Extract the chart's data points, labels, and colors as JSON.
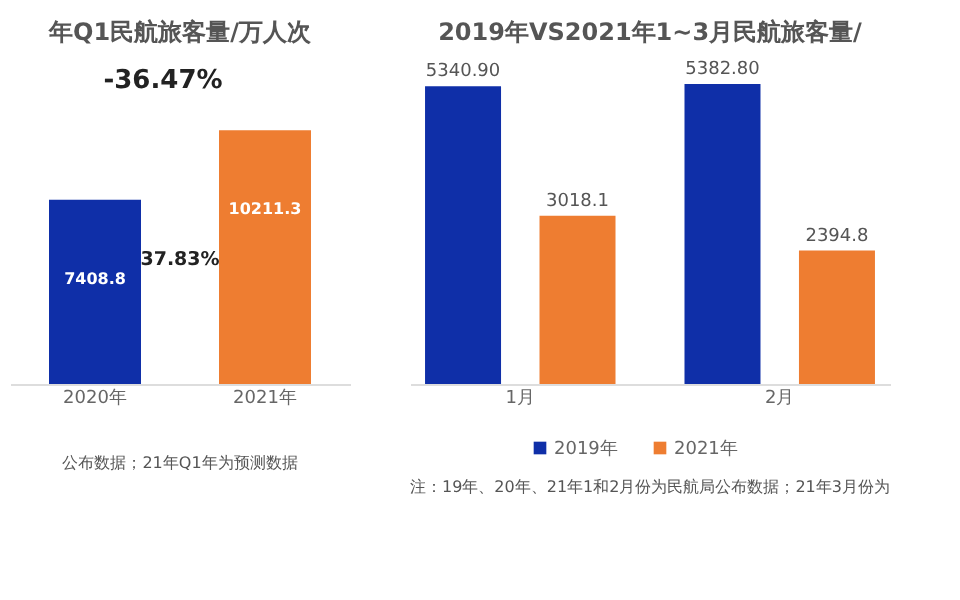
{
  "chart_data": [
    {
      "type": "bar",
      "title": "年Q1民航旅客量/万人次",
      "categories": [
        "2020年",
        "2021年"
      ],
      "values": [
        7408.8,
        10211.3
      ],
      "colors": [
        "#0f2fa8",
        "#ee7d31"
      ],
      "data_labels": true,
      "tick_labels": "x",
      "annotations": [
        "-36.47%",
        "37.83%",
        "公布数据；21年Q1年为预测数据"
      ]
    },
    {
      "type": "bar",
      "title": "2019年VS2021年1~3月民航旅客量/",
      "categories": [
        "1月",
        "2月"
      ],
      "tick_labels": "x",
      "legend": "bottom",
      "series": [
        {
          "name": "2019年",
          "color": "#0f2fa8",
          "values": [
            5340.9,
            5382.8
          ],
          "value_labels": [
            "5340.90",
            "5382.80"
          ]
        },
        {
          "name": "2021年",
          "color": "#ee7d31",
          "values": [
            3018.1,
            2394.8
          ],
          "value_labels": [
            "3018.1",
            "2394.8"
          ]
        }
      ],
      "annotations": [
        "注：19年、20年、21年1和2月份为民航局公布数据；21年3月份为"
      ]
    }
  ]
}
